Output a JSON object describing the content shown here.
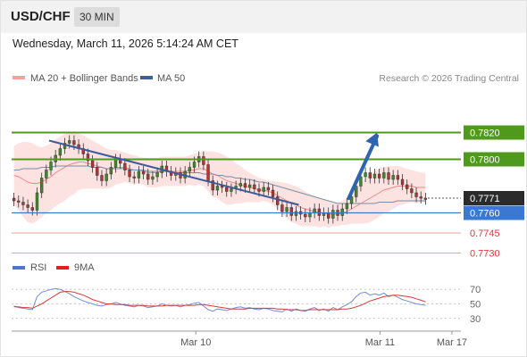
{
  "header": {
    "symbol": "USD/CHF",
    "timeframe": "30 MIN"
  },
  "datetime": "Wednesday, March 11, 2026 5:14:24 AM CET",
  "legend": {
    "items": [
      {
        "label": "MA 20 + Bollinger Bands",
        "color": "#f4a09b"
      },
      {
        "label": "MA 50",
        "color": "#3f5f9a"
      }
    ],
    "credit": "Research © 2026 Trading Central"
  },
  "levels": [
    {
      "price": 0.782,
      "label": "0.7820",
      "style": "green-box",
      "color": "#4f9a1c"
    },
    {
      "price": 0.78,
      "label": "0.7800",
      "style": "green-box",
      "color": "#4f9a1c"
    },
    {
      "price": 0.7771,
      "label": "0.7771",
      "style": "dark-box",
      "color": "#2b2b2b"
    },
    {
      "price": 0.776,
      "label": "0.7760",
      "style": "blue-box",
      "color": "#3a78d4"
    },
    {
      "price": 0.7745,
      "label": "0.7745",
      "style": "red-text",
      "color": "#d63b3b"
    },
    {
      "price": 0.773,
      "label": "0.7730",
      "style": "red-text",
      "color": "#d63b3b"
    }
  ],
  "rsi_legend": [
    {
      "label": "RSI",
      "color": "#4a78d0"
    },
    {
      "label": "9MA",
      "color": "#e02020"
    }
  ],
  "rsi_ticks": [
    "70",
    "50",
    "30"
  ],
  "x_labels": [
    {
      "label": "Mar 10",
      "x": 0.41
    },
    {
      "label": "Mar 11",
      "x": 0.82
    },
    {
      "label": "Mar 17",
      "x": 0.98
    }
  ],
  "chart_data": {
    "type": "line",
    "price_range": [
      0.7725,
      0.7845
    ],
    "close": [
      0.7769,
      0.7768,
      0.7766,
      0.7764,
      0.7762,
      0.7775,
      0.7786,
      0.7792,
      0.7798,
      0.7803,
      0.7808,
      0.7812,
      0.7814,
      0.7811,
      0.7808,
      0.7804,
      0.7799,
      0.7794,
      0.7788,
      0.7784,
      0.7789,
      0.7794,
      0.78,
      0.7797,
      0.7792,
      0.7787,
      0.7786,
      0.7791,
      0.7789,
      0.7785,
      0.7787,
      0.779,
      0.7795,
      0.7791,
      0.7788,
      0.779,
      0.7786,
      0.7791,
      0.7794,
      0.7798,
      0.7802,
      0.7796,
      0.7784,
      0.7777,
      0.778,
      0.7779,
      0.7776,
      0.7778,
      0.778,
      0.7782,
      0.7779,
      0.7781,
      0.7778,
      0.7776,
      0.7779,
      0.7777,
      0.7772,
      0.7766,
      0.7761,
      0.7764,
      0.7758,
      0.7761,
      0.7759,
      0.7757,
      0.776,
      0.7763,
      0.7758,
      0.776,
      0.7756,
      0.7762,
      0.7758,
      0.7763,
      0.7767,
      0.7772,
      0.778,
      0.7787,
      0.779,
      0.7786,
      0.7789,
      0.7786,
      0.779,
      0.7785,
      0.7788,
      0.7785,
      0.7781,
      0.7778,
      0.7775,
      0.7772,
      0.7771,
      0.777
    ],
    "ma20": [
      0.7788,
      0.7787,
      0.7785,
      0.7783,
      0.7782,
      0.7782,
      0.7783,
      0.7785,
      0.7787,
      0.779,
      0.7792,
      0.7794,
      0.7796,
      0.7797,
      0.7798,
      0.7798,
      0.7797,
      0.7796,
      0.7795,
      0.7794,
      0.7793,
      0.7793,
      0.7794,
      0.7794,
      0.7794,
      0.7793,
      0.7792,
      0.7792,
      0.7791,
      0.779,
      0.779,
      0.779,
      0.7791,
      0.7791,
      0.7791,
      0.7791,
      0.7791,
      0.7791,
      0.7792,
      0.7792,
      0.7793,
      0.7793,
      0.7791,
      0.7789,
      0.7788,
      0.7786,
      0.7784,
      0.7783,
      0.7782,
      0.7781,
      0.778,
      0.7779,
      0.7778,
      0.7777,
      0.7777,
      0.7776,
      0.7775,
      0.7773,
      0.7771,
      0.7769,
      0.7767,
      0.7766,
      0.7764,
      0.7763,
      0.7762,
      0.7761,
      0.776,
      0.776,
      0.7759,
      0.7759,
      0.7759,
      0.776,
      0.7761,
      0.7763,
      0.7765,
      0.7767,
      0.7769,
      0.7771,
      0.7773,
      0.7775,
      0.7777,
      0.7778,
      0.7779,
      0.778,
      0.778,
      0.778,
      0.778,
      0.7779,
      0.7779,
      0.7779
    ],
    "bb_upper": [
      0.781,
      0.7812,
      0.7813,
      0.7813,
      0.7812,
      0.781,
      0.7809,
      0.781,
      0.7812,
      0.7815,
      0.7817,
      0.7819,
      0.782,
      0.782,
      0.7819,
      0.7818,
      0.7816,
      0.7814,
      0.7812,
      0.781,
      0.7808,
      0.7807,
      0.7807,
      0.7806,
      0.7805,
      0.7804,
      0.7803,
      0.7802,
      0.7801,
      0.7801,
      0.7801,
      0.7801,
      0.7802,
      0.7802,
      0.7802,
      0.7802,
      0.7802,
      0.7802,
      0.7803,
      0.7804,
      0.7805,
      0.7806,
      0.7806,
      0.7806,
      0.7805,
      0.7804,
      0.7802,
      0.78,
      0.7797,
      0.7795,
      0.7792,
      0.779,
      0.7788,
      0.7786,
      0.7785,
      0.7784,
      0.7784,
      0.7783,
      0.7783,
      0.7782,
      0.7781,
      0.778,
      0.7778,
      0.7776,
      0.7774,
      0.7772,
      0.7771,
      0.777,
      0.7769,
      0.7768,
      0.7768,
      0.7769,
      0.7771,
      0.7774,
      0.7778,
      0.7782,
      0.7786,
      0.7789,
      0.7791,
      0.7793,
      0.7794,
      0.7795,
      0.7795,
      0.7795,
      0.7794,
      0.7793,
      0.7792,
      0.7791,
      0.779,
      0.779
    ],
    "bb_lower": [
      0.7766,
      0.7762,
      0.7757,
      0.7753,
      0.7752,
      0.7754,
      0.7757,
      0.776,
      0.7762,
      0.7765,
      0.7767,
      0.7769,
      0.7772,
      0.7774,
      0.7777,
      0.7778,
      0.7778,
      0.7778,
      0.7778,
      0.7778,
      0.7778,
      0.7779,
      0.7781,
      0.7782,
      0.7783,
      0.7782,
      0.7781,
      0.7782,
      0.7781,
      0.7779,
      0.7779,
      0.7779,
      0.778,
      0.778,
      0.778,
      0.778,
      0.778,
      0.778,
      0.7781,
      0.778,
      0.7781,
      0.778,
      0.7776,
      0.7772,
      0.7771,
      0.7768,
      0.7766,
      0.7766,
      0.7767,
      0.7767,
      0.7768,
      0.7768,
      0.7768,
      0.7768,
      0.7769,
      0.7768,
      0.7766,
      0.7763,
      0.7759,
      0.7756,
      0.7753,
      0.7752,
      0.775,
      0.775,
      0.775,
      0.775,
      0.7749,
      0.775,
      0.7749,
      0.775,
      0.775,
      0.7751,
      0.7751,
      0.7752,
      0.7752,
      0.7752,
      0.7752,
      0.7753,
      0.7755,
      0.7757,
      0.776,
      0.7761,
      0.7763,
      0.7765,
      0.7766,
      0.7767,
      0.7768,
      0.7767,
      0.7768,
      0.7768
    ],
    "ma50": [
      0.7792,
      0.7792,
      0.7793,
      0.7793,
      0.7793,
      0.7793,
      0.7794,
      0.7794,
      0.7794,
      0.7795,
      0.7795,
      0.7795,
      0.7795,
      0.7795,
      0.7795,
      0.7795,
      0.7795,
      0.7794,
      0.7794,
      0.7794,
      0.7793,
      0.7793,
      0.7793,
      0.7793,
      0.7793,
      0.7792,
      0.7792,
      0.7792,
      0.7792,
      0.7791,
      0.7791,
      0.7791,
      0.7791,
      0.7791,
      0.779,
      0.779,
      0.779,
      0.779,
      0.779,
      0.779,
      0.779,
      0.7789,
      0.7789,
      0.7789,
      0.7788,
      0.7788,
      0.7787,
      0.7787,
      0.7786,
      0.7786,
      0.7785,
      0.7785,
      0.7784,
      0.7783,
      0.7783,
      0.7782,
      0.7781,
      0.778,
      0.7779,
      0.7778,
      0.7777,
      0.7776,
      0.7775,
      0.7774,
      0.7773,
      0.7772,
      0.7771,
      0.777,
      0.7769,
      0.7768,
      0.7767,
      0.7767,
      0.7767,
      0.7767,
      0.7767,
      0.7767,
      0.7767,
      0.7767,
      0.7767,
      0.7768,
      0.7768,
      0.7768,
      0.7768,
      0.7769,
      0.7769,
      0.7769,
      0.7769,
      0.7769,
      0.7769,
      0.7769
    ],
    "trendline": {
      "from": [
        0.09,
        0.7814
      ],
      "to": [
        0.69,
        0.7766
      ]
    },
    "projection": {
      "from": [
        0.81,
        0.7771
      ],
      "to": [
        0.878,
        0.782
      ]
    },
    "rsi_range": [
      20,
      80
    ],
    "rsi": [
      47,
      45,
      44,
      43,
      42,
      60,
      66,
      68,
      70,
      71,
      70,
      67,
      64,
      60,
      57,
      54,
      52,
      50,
      48,
      47,
      49,
      50,
      52,
      50,
      48,
      47,
      46,
      48,
      47,
      45,
      46,
      47,
      50,
      48,
      47,
      48,
      46,
      48,
      49,
      51,
      52,
      47,
      42,
      40,
      43,
      42,
      41,
      43,
      45,
      46,
      44,
      45,
      43,
      42,
      44,
      43,
      41,
      40,
      39,
      43,
      40,
      43,
      41,
      40,
      43,
      45,
      41,
      43,
      40,
      45,
      42,
      46,
      49,
      53,
      60,
      65,
      66,
      62,
      64,
      62,
      65,
      60,
      62,
      59,
      56,
      54,
      52,
      50,
      49,
      48
    ],
    "rsi_ma": [
      46,
      46,
      45,
      45,
      44,
      47,
      50,
      54,
      58,
      62,
      66,
      67,
      67,
      66,
      64,
      62,
      59,
      56,
      54,
      52,
      50,
      50,
      49,
      49,
      49,
      48,
      48,
      48,
      48,
      47,
      47,
      47,
      47,
      48,
      48,
      48,
      48,
      48,
      48,
      48,
      49,
      49,
      48,
      47,
      46,
      45,
      44,
      43,
      43,
      43,
      43,
      44,
      44,
      44,
      44,
      44,
      44,
      43,
      43,
      42,
      42,
      42,
      41,
      41,
      42,
      42,
      42,
      42,
      42,
      42,
      42,
      43,
      43,
      44,
      46,
      48,
      51,
      54,
      56,
      58,
      60,
      61,
      62,
      62,
      61,
      60,
      59,
      57,
      55,
      53
    ]
  }
}
